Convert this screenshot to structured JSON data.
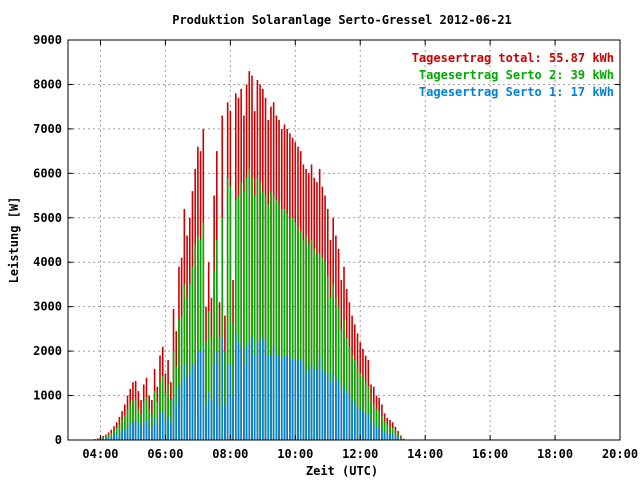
{
  "chart_data": {
    "type": "bar",
    "title": "Produktion Solaranlage Serto-Gressel 2012-06-21",
    "xlabel": "Zeit (UTC)",
    "ylabel": "Leistung [W]",
    "x_unit": "hours UTC",
    "xlim": [
      3.0,
      20.0
    ],
    "ylim": [
      0,
      9000
    ],
    "grid": true,
    "legend_position": "top-right",
    "x_ticks": [
      {
        "value": 4,
        "label": "04:00"
      },
      {
        "value": 6,
        "label": "06:00"
      },
      {
        "value": 8,
        "label": "08:00"
      },
      {
        "value": 10,
        "label": "10:00"
      },
      {
        "value": 12,
        "label": "12:00"
      },
      {
        "value": 14,
        "label": "14:00"
      },
      {
        "value": 16,
        "label": "16:00"
      },
      {
        "value": 18,
        "label": "18:00"
      },
      {
        "value": 20,
        "label": "20:00"
      }
    ],
    "y_ticks": [
      0,
      1000,
      2000,
      3000,
      4000,
      5000,
      6000,
      7000,
      8000,
      9000
    ],
    "legend": [
      {
        "text": "Tagesertrag total: 55.87 kWh",
        "color": "#cc0000"
      },
      {
        "text": "Tagesertrag Serto 2: 39 kWh",
        "color": "#00aa00"
      },
      {
        "text": "Tagesertrag Serto 1: 17 kWh",
        "color": "#0080dd"
      }
    ],
    "series": [
      {
        "name": "Tagesertrag total",
        "color": "#cc0000",
        "values": [
          20,
          40,
          60,
          90,
          120,
          170,
          230,
          310,
          400,
          520,
          650,
          800,
          1000,
          1150,
          1300,
          1330,
          1100,
          900,
          1250,
          1400,
          1000,
          900,
          1600,
          1200,
          1900,
          2100,
          1500,
          1800,
          1300,
          2950,
          2450,
          3900,
          4100,
          5200,
          4600,
          5000,
          5600,
          6100,
          6600,
          6500,
          7000,
          3000,
          4000,
          3200,
          5500,
          6500,
          3100,
          7300,
          2800,
          7600,
          7400,
          3600,
          7800,
          7700,
          7900,
          7300,
          8000,
          8300,
          8200,
          7400,
          8100,
          8000,
          7900,
          7700,
          7200,
          7500,
          7600,
          7300,
          7200,
          7000,
          7100,
          7000,
          6900,
          6800,
          6700,
          6600,
          6500,
          6200,
          6100,
          6000,
          6200,
          5900,
          5800,
          6100,
          5700,
          5500,
          5200,
          4500,
          5000,
          4600,
          4300,
          3600,
          3900,
          3400,
          3100,
          2800,
          2600,
          2400,
          2200,
          2050,
          1900,
          1800,
          1250,
          1200,
          1000,
          950,
          800,
          600,
          500,
          450,
          400,
          300,
          200,
          100,
          30
        ]
      },
      {
        "name": "Tagesertrag Serto 2",
        "color": "#00aa00",
        "values": [
          12,
          25,
          40,
          60,
          80,
          110,
          160,
          210,
          270,
          350,
          440,
          550,
          700,
          800,
          900,
          920,
          700,
          600,
          850,
          950,
          700,
          600,
          1100,
          850,
          1300,
          1450,
          1050,
          1250,
          900,
          2000,
          1650,
          2700,
          2800,
          3500,
          3200,
          3500,
          3900,
          4400,
          4600,
          4500,
          4900,
          2200,
          2900,
          2300,
          3800,
          4500,
          2300,
          5000,
          2000,
          5900,
          5700,
          2600,
          5400,
          5500,
          5800,
          5600,
          5900,
          6100,
          5900,
          5500,
          5900,
          5800,
          5600,
          5500,
          5300,
          5600,
          5500,
          5400,
          5300,
          5200,
          5200,
          5100,
          5000,
          5000,
          4900,
          4800,
          4700,
          4500,
          4600,
          4400,
          4500,
          4300,
          4200,
          4200,
          4100,
          4000,
          3700,
          3200,
          3500,
          3200,
          3000,
          2500,
          2700,
          2300,
          2100,
          1900,
          1800,
          1650,
          1500,
          1400,
          1300,
          1200,
          850,
          800,
          700,
          650,
          550,
          420,
          350,
          300,
          270,
          200,
          130,
          70,
          20
        ]
      },
      {
        "name": "Tagesertrag Serto 1",
        "color": "#0080dd",
        "values": [
          8,
          15,
          20,
          30,
          40,
          60,
          70,
          100,
          130,
          170,
          210,
          250,
          300,
          350,
          400,
          410,
          400,
          300,
          400,
          450,
          300,
          300,
          500,
          350,
          600,
          650,
          450,
          550,
          400,
          950,
          800,
          1200,
          1300,
          1700,
          1400,
          1500,
          1700,
          1700,
          2000,
          2000,
          2100,
          800,
          1100,
          900,
          1700,
          2000,
          800,
          2300,
          800,
          1700,
          1700,
          1000,
          2400,
          2200,
          2100,
          1700,
          2100,
          2200,
          2300,
          1900,
          2200,
          2200,
          2300,
          2200,
          1900,
          1900,
          2100,
          1900,
          1900,
          1800,
          1900,
          1900,
          1900,
          1800,
          1800,
          1800,
          1800,
          1700,
          1500,
          1600,
          1700,
          1600,
          1600,
          1900,
          1600,
          1500,
          1500,
          1300,
          1500,
          1400,
          1300,
          1100,
          1200,
          1100,
          1000,
          900,
          800,
          750,
          700,
          650,
          600,
          600,
          400,
          400,
          300,
          300,
          250,
          180,
          150,
          150,
          130,
          100,
          70,
          30,
          10
        ]
      }
    ],
    "x": [
      3.833,
      3.917,
      4.0,
      4.083,
      4.167,
      4.25,
      4.333,
      4.417,
      4.5,
      4.583,
      4.667,
      4.75,
      4.833,
      4.917,
      5.0,
      5.083,
      5.167,
      5.25,
      5.333,
      5.417,
      5.5,
      5.583,
      5.667,
      5.75,
      5.833,
      5.917,
      6.0,
      6.083,
      6.167,
      6.25,
      6.333,
      6.417,
      6.5,
      6.583,
      6.667,
      6.75,
      6.833,
      6.917,
      7.0,
      7.083,
      7.167,
      7.25,
      7.333,
      7.417,
      7.5,
      7.583,
      7.667,
      7.75,
      7.833,
      7.917,
      8.0,
      8.083,
      8.167,
      8.25,
      8.333,
      8.417,
      8.5,
      8.583,
      8.667,
      8.75,
      8.833,
      8.917,
      9.0,
      9.083,
      9.167,
      9.25,
      9.333,
      9.417,
      9.5,
      9.583,
      9.667,
      9.75,
      9.833,
      9.917,
      10.0,
      10.083,
      10.167,
      10.25,
      10.333,
      10.417,
      10.5,
      10.583,
      10.667,
      10.75,
      10.833,
      10.917,
      11.0,
      11.083,
      11.167,
      11.25,
      11.333,
      11.417,
      11.5,
      11.583,
      11.667,
      11.75,
      11.833,
      11.917,
      12.0,
      12.083,
      12.167,
      12.25,
      12.333,
      12.417,
      12.5,
      12.583,
      12.667,
      12.75,
      12.833,
      12.917,
      13.0,
      13.083,
      13.167,
      13.25,
      13.333
    ]
  }
}
